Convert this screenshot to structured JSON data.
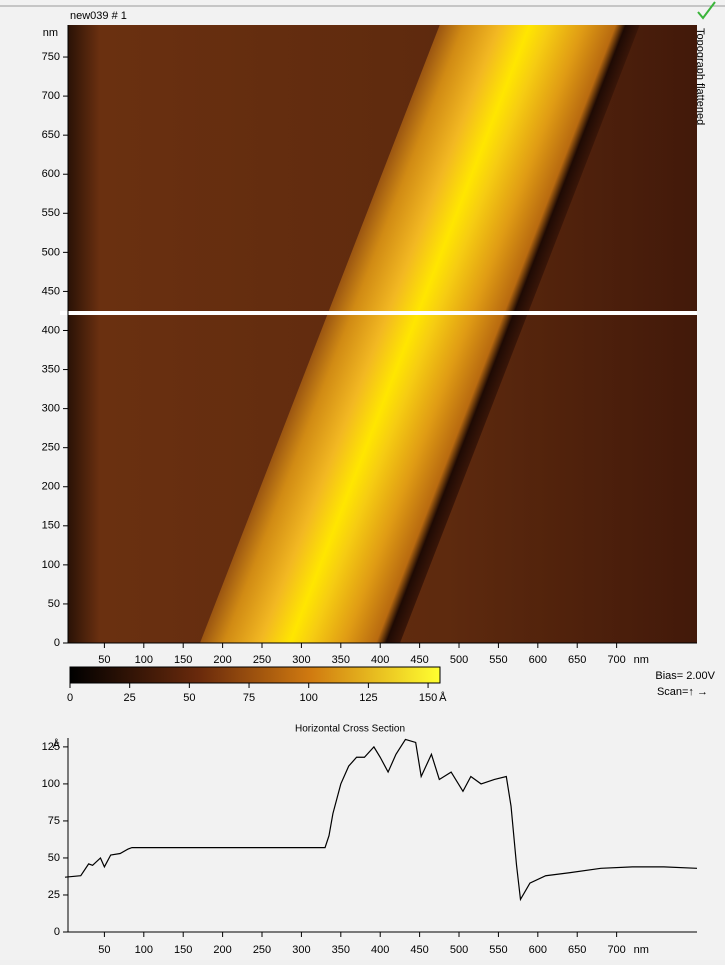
{
  "title": "new039 # 1",
  "side_label": "Topograph  flattened",
  "image": {
    "y_unit": "nm",
    "ylim": [
      0,
      791
    ],
    "yticks": [
      0,
      50,
      100,
      150,
      200,
      250,
      300,
      350,
      400,
      450,
      500,
      550,
      600,
      650,
      700,
      750
    ],
    "x_unit": "nm",
    "xlim": [
      0,
      802
    ],
    "xticks": [
      50,
      100,
      150,
      200,
      250,
      300,
      350,
      400,
      450,
      500,
      550,
      600,
      650,
      700
    ]
  },
  "colorbar": {
    "unit": "Å",
    "lim": [
      0,
      155
    ],
    "ticks": [
      0,
      25,
      50,
      75,
      100,
      125,
      150
    ]
  },
  "bias": "Bias= 2.00V",
  "scan": "Scan=↑ →",
  "cross_section": {
    "type": "line",
    "title": "Horizontal Cross Section",
    "y_unit": "Å",
    "ylim": [
      0,
      131
    ],
    "yticks": [
      0,
      25,
      50,
      75,
      100,
      125
    ],
    "x_unit": "nm",
    "xlim": [
      0,
      802
    ],
    "xticks": [
      50,
      100,
      150,
      200,
      250,
      300,
      350,
      400,
      450,
      500,
      550,
      600,
      650,
      700
    ],
    "x": [
      0,
      20,
      30,
      35,
      45,
      50,
      58,
      70,
      80,
      85,
      150,
      250,
      330,
      335,
      340,
      350,
      360,
      370,
      380,
      392,
      400,
      410,
      420,
      432,
      445,
      452,
      465,
      475,
      490,
      505,
      515,
      528,
      545,
      560,
      566,
      573,
      578,
      590,
      610,
      640,
      680,
      720,
      760,
      802
    ],
    "values": [
      37,
      38,
      46,
      45,
      50,
      44,
      52,
      53,
      56,
      57,
      57,
      57,
      57,
      65,
      80,
      100,
      112,
      118,
      118,
      125,
      118,
      108,
      120,
      130,
      128,
      105,
      120,
      103,
      108,
      95,
      105,
      100,
      103,
      105,
      85,
      45,
      22,
      33,
      38,
      40,
      43,
      44,
      44,
      43
    ]
  }
}
